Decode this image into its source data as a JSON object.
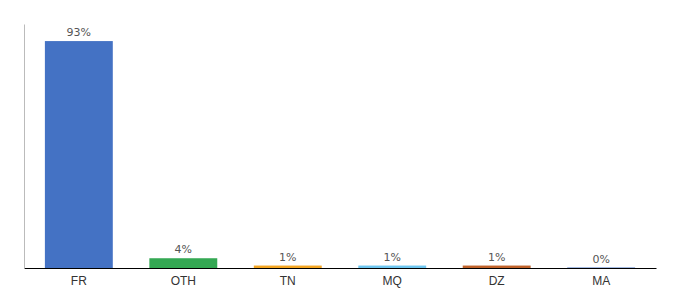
{
  "chart_data": {
    "type": "bar",
    "categories": [
      "FR",
      "OTH",
      "TN",
      "MQ",
      "DZ",
      "MA"
    ],
    "values": [
      93,
      4,
      1,
      1,
      1,
      0.2
    ],
    "value_labels": [
      "93%",
      "4%",
      "1%",
      "1%",
      "1%",
      "0%"
    ],
    "colors": [
      "#4472C4",
      "#34A853",
      "#F4A623",
      "#6EC6F0",
      "#C0622A",
      "#4472C4"
    ],
    "ylim": [
      0,
      100
    ],
    "data_labels": true,
    "tick_labels": "x"
  }
}
